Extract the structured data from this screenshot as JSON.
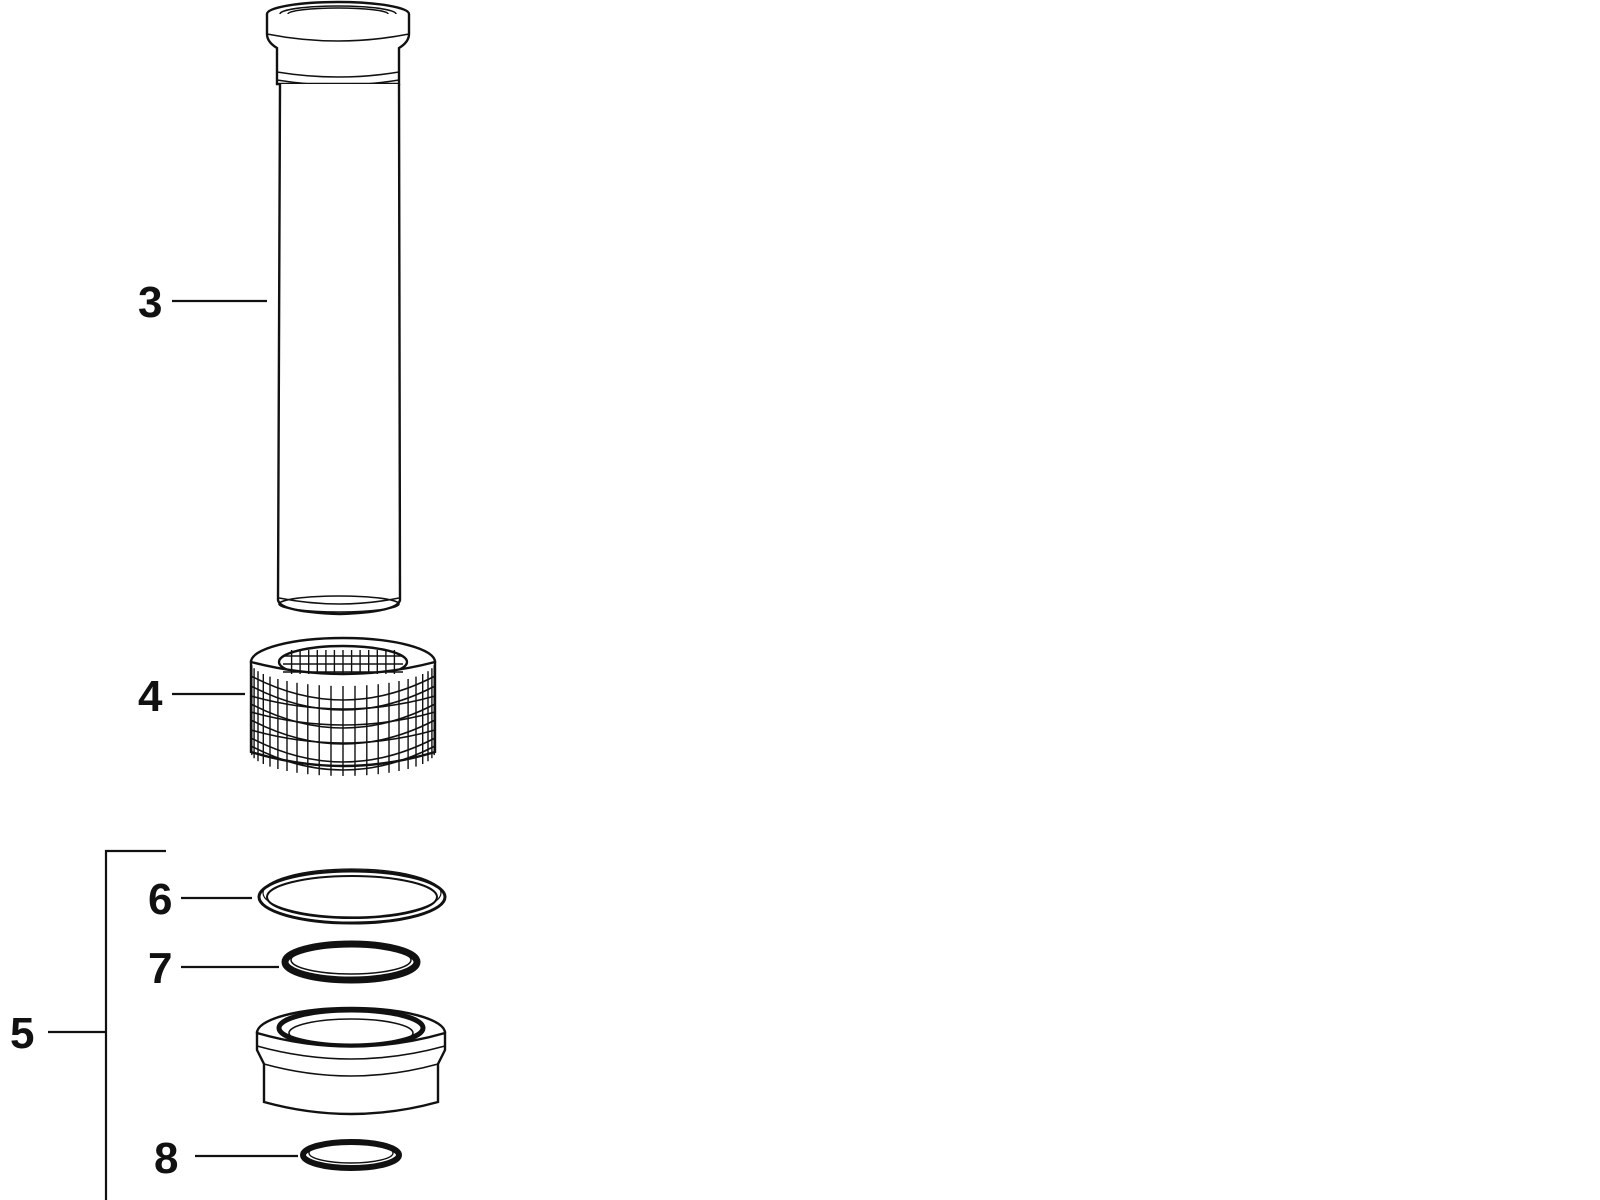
{
  "diagram": {
    "callouts": [
      {
        "id": "3",
        "label": "3"
      },
      {
        "id": "4",
        "label": "4"
      },
      {
        "id": "5",
        "label": "5"
      },
      {
        "id": "6",
        "label": "6"
      },
      {
        "id": "7",
        "label": "7"
      },
      {
        "id": "8",
        "label": "8"
      }
    ],
    "parts": [
      {
        "callout": "3",
        "icon": "pipe-icon"
      },
      {
        "callout": "4",
        "icon": "strainer-basket-icon"
      },
      {
        "callout": "5",
        "icon": "connector-assembly-icon"
      },
      {
        "callout": "6",
        "icon": "large-seal-ring-icon"
      },
      {
        "callout": "7",
        "icon": "seal-ring-icon"
      },
      {
        "callout": "8",
        "icon": "small-seal-ring-icon"
      }
    ],
    "colors": {
      "line": "#111111",
      "background": "#ffffff"
    }
  }
}
